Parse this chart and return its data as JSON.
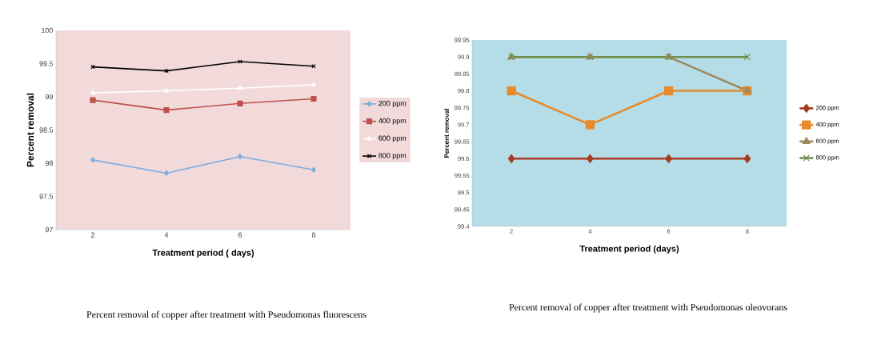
{
  "chart_data": [
    {
      "type": "line",
      "xlabel": "Treatment period ( days)",
      "ylabel": "Percent removal",
      "categories": [
        "2",
        "4",
        "6",
        "8"
      ],
      "series": [
        {
          "name": "200 ppm",
          "color": "#7aaee0",
          "marker": "diamond",
          "values": [
            98.05,
            97.85,
            98.1,
            97.9
          ]
        },
        {
          "name": "400 ppm",
          "color": "#c0504d",
          "marker": "square",
          "values": [
            98.95,
            98.8,
            98.9,
            98.97
          ]
        },
        {
          "name": "600 ppm",
          "color": "#ffffff",
          "marker": "triangle",
          "values": [
            99.06,
            99.09,
            99.13,
            99.18
          ]
        },
        {
          "name": "800 ppm",
          "color": "#000000",
          "marker": "cross",
          "values": [
            99.45,
            99.39,
            99.53,
            99.46
          ]
        }
      ],
      "ylim": [
        97,
        100
      ],
      "yticks": [
        97,
        97.5,
        98,
        98.5,
        99,
        99.5,
        100
      ],
      "legend": "right",
      "grid": false,
      "annotations": [
        "Percent removal of copper after treatment with Pseudomonas fluorescens"
      ]
    },
    {
      "type": "line",
      "xlabel": "Treatment period (days)",
      "ylabel": "Percent removal",
      "categories": [
        "2",
        "4",
        "6",
        "8"
      ],
      "series": [
        {
          "name": "200 ppm",
          "color": "#a83a22",
          "marker": "diamond",
          "values": [
            99.6,
            99.6,
            99.6,
            99.6
          ]
        },
        {
          "name": "400 ppm",
          "color": "#e88a2a",
          "marker": "square",
          "values": [
            99.8,
            99.7,
            99.8,
            99.8
          ]
        },
        {
          "name": "600 ppm",
          "color": "#9e8a5e",
          "marker": "triangle",
          "values": [
            99.9,
            99.9,
            99.9,
            99.8
          ]
        },
        {
          "name": "800 ppm",
          "color": "#6f8f4c",
          "marker": "cross",
          "values": [
            99.9,
            99.9,
            99.9,
            99.9
          ]
        }
      ],
      "ylim": [
        99.4,
        99.95
      ],
      "yticks": [
        99.4,
        99.45,
        99.5,
        99.55,
        99.6,
        99.65,
        99.7,
        99.75,
        99.8,
        99.85,
        99.9,
        99.95
      ],
      "legend": "right",
      "grid": false,
      "annotations": [
        "Percent removal of copper after treatment with Pseudomonas oleovorans"
      ]
    }
  ]
}
